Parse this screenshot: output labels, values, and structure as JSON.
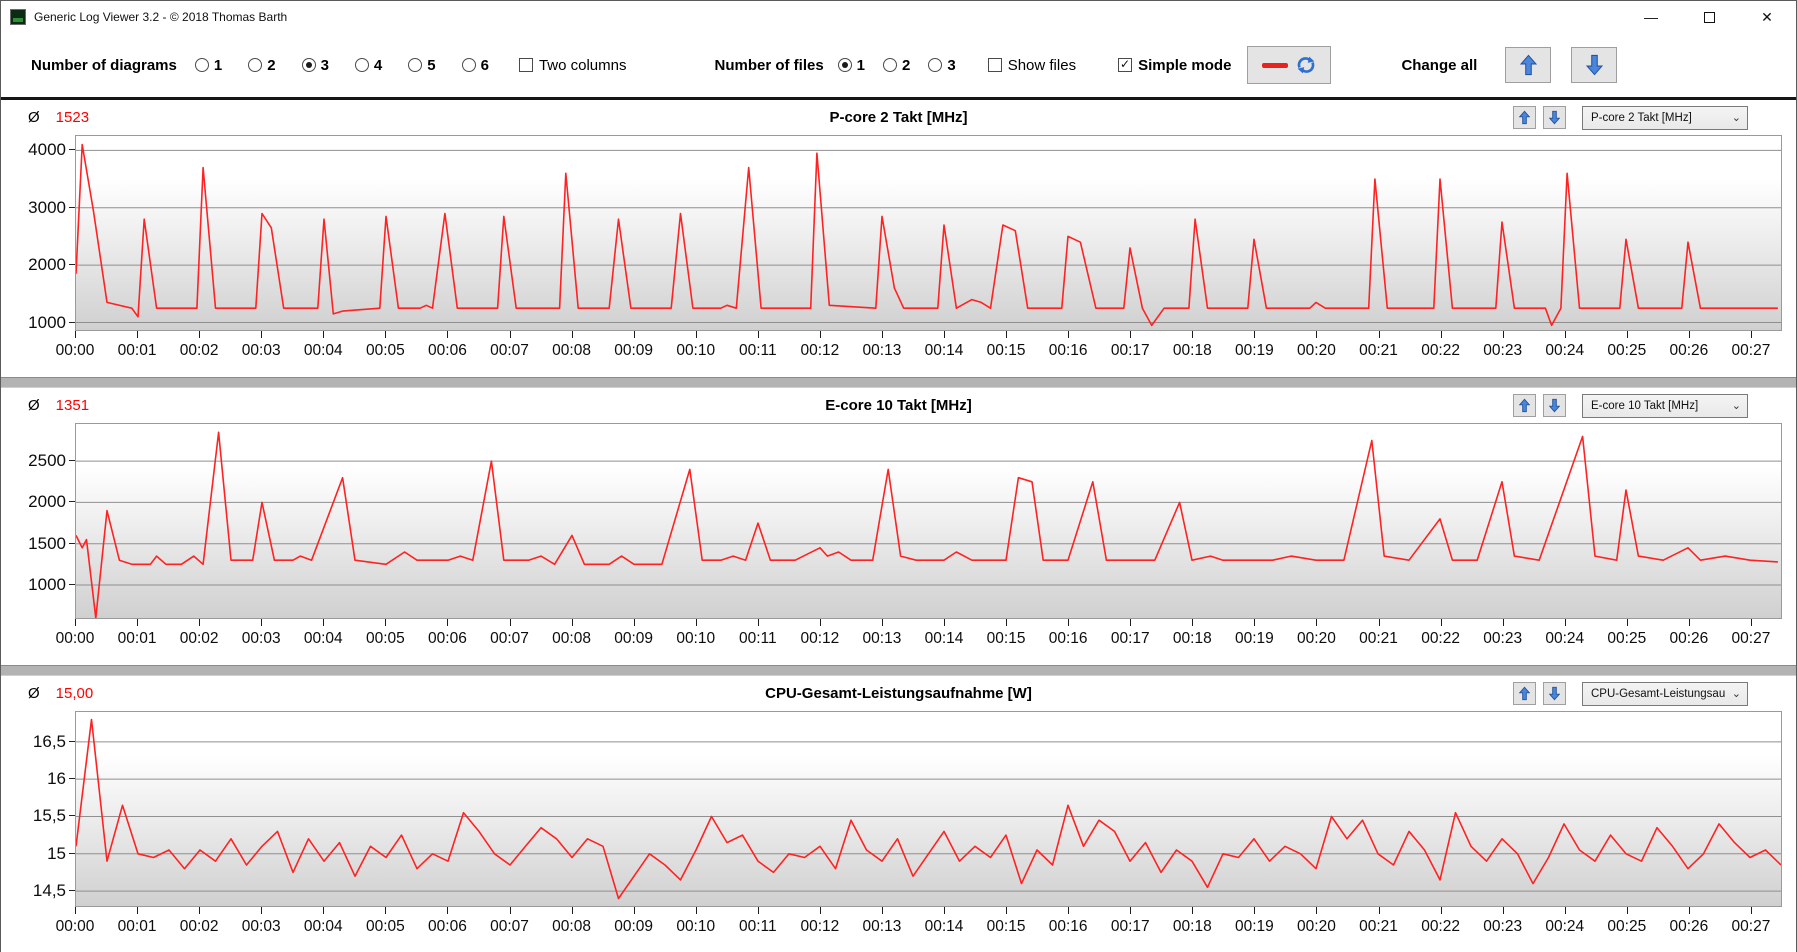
{
  "window": {
    "title": "Generic Log Viewer 3.2 - © 2018 Thomas Barth",
    "minimize_glyph": "—",
    "close_glyph": "✕"
  },
  "toolbar": {
    "diagrams_label": "Number of diagrams",
    "diagram_options": [
      "1",
      "2",
      "3",
      "4",
      "5",
      "6"
    ],
    "diagrams_selected": "3",
    "two_columns_label": "Two columns",
    "two_columns_checked": false,
    "files_label": "Number of files",
    "file_options": [
      "1",
      "2",
      "3"
    ],
    "files_selected": "1",
    "show_files_label": "Show files",
    "show_files_checked": false,
    "simple_mode_label": "Simple mode",
    "simple_mode_checked": true,
    "change_all_label": "Change all"
  },
  "time_labels": [
    "00:00",
    "00:01",
    "00:02",
    "00:03",
    "00:04",
    "00:05",
    "00:06",
    "00:07",
    "00:08",
    "00:09",
    "00:10",
    "00:11",
    "00:12",
    "00:13",
    "00:14",
    "00:15",
    "00:16",
    "00:17",
    "00:18",
    "00:19",
    "00:20",
    "00:21",
    "00:22",
    "00:23",
    "00:24",
    "00:25",
    "00:26",
    "00:27"
  ],
  "charts": [
    {
      "avg_symbol": "Ø",
      "avg": "1523",
      "title": "P-core 2 Takt [MHz]",
      "dropdown": "P-core 2 Takt [MHz]",
      "type": "line",
      "ymin": 870,
      "ymax": 4250,
      "xmax": 27.5,
      "yticks": [
        {
          "v": 1000,
          "label": "1000"
        },
        {
          "v": 2000,
          "label": "2000"
        },
        {
          "v": 3000,
          "label": "3000"
        },
        {
          "v": 4000,
          "label": "4000"
        }
      ],
      "series": {
        "color": "#ff2222",
        "points": [
          [
            0,
            1850
          ],
          [
            0.1,
            4100
          ],
          [
            0.28,
            2950
          ],
          [
            0.5,
            1350
          ],
          [
            0.9,
            1250
          ],
          [
            1.0,
            1100
          ],
          [
            1.1,
            2800
          ],
          [
            1.3,
            1250
          ],
          [
            1.95,
            1250
          ],
          [
            2.05,
            3700
          ],
          [
            2.25,
            1250
          ],
          [
            2.9,
            1250
          ],
          [
            3.0,
            2900
          ],
          [
            3.15,
            2650
          ],
          [
            3.35,
            1250
          ],
          [
            3.9,
            1250
          ],
          [
            4.0,
            2800
          ],
          [
            4.15,
            1150
          ],
          [
            4.3,
            1200
          ],
          [
            4.9,
            1250
          ],
          [
            5.0,
            2850
          ],
          [
            5.2,
            1250
          ],
          [
            5.55,
            1250
          ],
          [
            5.65,
            1300
          ],
          [
            5.75,
            1250
          ],
          [
            5.95,
            2900
          ],
          [
            6.15,
            1250
          ],
          [
            6.8,
            1250
          ],
          [
            6.9,
            2850
          ],
          [
            7.1,
            1250
          ],
          [
            7.8,
            1250
          ],
          [
            7.9,
            3600
          ],
          [
            8.1,
            1250
          ],
          [
            8.6,
            1250
          ],
          [
            8.75,
            2800
          ],
          [
            8.95,
            1250
          ],
          [
            9.6,
            1250
          ],
          [
            9.75,
            2900
          ],
          [
            9.95,
            1250
          ],
          [
            10.4,
            1250
          ],
          [
            10.5,
            1300
          ],
          [
            10.65,
            1250
          ],
          [
            10.85,
            3700
          ],
          [
            11.05,
            1250
          ],
          [
            11.85,
            1250
          ],
          [
            11.95,
            3950
          ],
          [
            12.15,
            1300
          ],
          [
            12.9,
            1250
          ],
          [
            13.0,
            2850
          ],
          [
            13.2,
            1600
          ],
          [
            13.35,
            1250
          ],
          [
            13.9,
            1250
          ],
          [
            14.0,
            2700
          ],
          [
            14.2,
            1250
          ],
          [
            14.45,
            1400
          ],
          [
            14.6,
            1350
          ],
          [
            14.75,
            1250
          ],
          [
            14.95,
            2700
          ],
          [
            15.15,
            2600
          ],
          [
            15.35,
            1250
          ],
          [
            15.9,
            1250
          ],
          [
            16.0,
            2500
          ],
          [
            16.2,
            2400
          ],
          [
            16.45,
            1250
          ],
          [
            16.9,
            1250
          ],
          [
            17.0,
            2300
          ],
          [
            17.2,
            1250
          ],
          [
            17.35,
            950
          ],
          [
            17.55,
            1250
          ],
          [
            17.95,
            1250
          ],
          [
            18.05,
            2800
          ],
          [
            18.25,
            1250
          ],
          [
            18.9,
            1250
          ],
          [
            19.0,
            2450
          ],
          [
            19.2,
            1250
          ],
          [
            19.9,
            1250
          ],
          [
            20.0,
            1350
          ],
          [
            20.15,
            1250
          ],
          [
            20.85,
            1250
          ],
          [
            20.95,
            3500
          ],
          [
            21.15,
            1250
          ],
          [
            21.9,
            1250
          ],
          [
            22.0,
            3500
          ],
          [
            22.2,
            1250
          ],
          [
            22.9,
            1250
          ],
          [
            23.0,
            2750
          ],
          [
            23.2,
            1250
          ],
          [
            23.7,
            1250
          ],
          [
            23.8,
            950
          ],
          [
            23.95,
            1250
          ],
          [
            24.05,
            3600
          ],
          [
            24.25,
            1250
          ],
          [
            24.9,
            1250
          ],
          [
            25.0,
            2450
          ],
          [
            25.2,
            1250
          ],
          [
            25.9,
            1250
          ],
          [
            26.0,
            2400
          ],
          [
            26.2,
            1250
          ],
          [
            26.6,
            1250
          ],
          [
            27.45,
            1250
          ]
        ]
      }
    },
    {
      "avg_symbol": "Ø",
      "avg": "1351",
      "title": "E-core 10 Takt [MHz]",
      "dropdown": "E-core 10 Takt [MHz]",
      "type": "line",
      "ymin": 600,
      "ymax": 2950,
      "xmax": 27.5,
      "yticks": [
        {
          "v": 1000,
          "label": "1000"
        },
        {
          "v": 1500,
          "label": "1500"
        },
        {
          "v": 2000,
          "label": "2000"
        },
        {
          "v": 2500,
          "label": "2500"
        }
      ],
      "series": {
        "color": "#ff2222",
        "points": [
          [
            0,
            1600
          ],
          [
            0.1,
            1450
          ],
          [
            0.17,
            1550
          ],
          [
            0.32,
            600
          ],
          [
            0.5,
            1900
          ],
          [
            0.7,
            1300
          ],
          [
            0.9,
            1250
          ],
          [
            1.2,
            1250
          ],
          [
            1.3,
            1350
          ],
          [
            1.45,
            1250
          ],
          [
            1.7,
            1250
          ],
          [
            1.9,
            1350
          ],
          [
            2.05,
            1250
          ],
          [
            2.3,
            2850
          ],
          [
            2.5,
            1300
          ],
          [
            2.85,
            1300
          ],
          [
            3.0,
            2000
          ],
          [
            3.2,
            1300
          ],
          [
            3.5,
            1300
          ],
          [
            3.62,
            1350
          ],
          [
            3.8,
            1300
          ],
          [
            4.3,
            2300
          ],
          [
            4.5,
            1300
          ],
          [
            5.0,
            1250
          ],
          [
            5.3,
            1400
          ],
          [
            5.5,
            1300
          ],
          [
            6.0,
            1300
          ],
          [
            6.2,
            1350
          ],
          [
            6.4,
            1300
          ],
          [
            6.7,
            2500
          ],
          [
            6.9,
            1300
          ],
          [
            7.3,
            1300
          ],
          [
            7.5,
            1350
          ],
          [
            7.72,
            1250
          ],
          [
            8.0,
            1600
          ],
          [
            8.2,
            1250
          ],
          [
            8.6,
            1250
          ],
          [
            8.8,
            1350
          ],
          [
            9.0,
            1250
          ],
          [
            9.45,
            1250
          ],
          [
            9.9,
            2400
          ],
          [
            10.1,
            1300
          ],
          [
            10.4,
            1300
          ],
          [
            10.6,
            1350
          ],
          [
            10.8,
            1300
          ],
          [
            11.0,
            1750
          ],
          [
            11.2,
            1300
          ],
          [
            11.6,
            1300
          ],
          [
            12.0,
            1450
          ],
          [
            12.12,
            1350
          ],
          [
            12.3,
            1400
          ],
          [
            12.5,
            1300
          ],
          [
            12.85,
            1300
          ],
          [
            13.1,
            2400
          ],
          [
            13.3,
            1350
          ],
          [
            13.55,
            1300
          ],
          [
            14.0,
            1300
          ],
          [
            14.2,
            1400
          ],
          [
            14.45,
            1300
          ],
          [
            15.0,
            1300
          ],
          [
            15.2,
            2300
          ],
          [
            15.42,
            2250
          ],
          [
            15.6,
            1300
          ],
          [
            16.0,
            1300
          ],
          [
            16.4,
            2250
          ],
          [
            16.62,
            1300
          ],
          [
            17.0,
            1300
          ],
          [
            17.4,
            1300
          ],
          [
            17.8,
            2000
          ],
          [
            18.0,
            1300
          ],
          [
            18.3,
            1350
          ],
          [
            18.5,
            1300
          ],
          [
            19.0,
            1300
          ],
          [
            19.3,
            1300
          ],
          [
            19.6,
            1350
          ],
          [
            20.0,
            1300
          ],
          [
            20.45,
            1300
          ],
          [
            20.9,
            2750
          ],
          [
            21.1,
            1350
          ],
          [
            21.5,
            1300
          ],
          [
            22.0,
            1800
          ],
          [
            22.2,
            1300
          ],
          [
            22.6,
            1300
          ],
          [
            23.0,
            2250
          ],
          [
            23.2,
            1350
          ],
          [
            23.6,
            1300
          ],
          [
            24.3,
            2800
          ],
          [
            24.5,
            1350
          ],
          [
            24.85,
            1300
          ],
          [
            25.0,
            2150
          ],
          [
            25.2,
            1350
          ],
          [
            25.6,
            1300
          ],
          [
            26.0,
            1450
          ],
          [
            26.2,
            1300
          ],
          [
            26.6,
            1350
          ],
          [
            27.0,
            1300
          ],
          [
            27.45,
            1280
          ]
        ]
      }
    },
    {
      "avg_symbol": "Ø",
      "avg": "15,00",
      "title": "CPU-Gesamt-Leistungsaufnahme [W]",
      "dropdown": "CPU-Gesamt-Leistungsau",
      "type": "line",
      "ymin": 14.3,
      "ymax": 16.9,
      "xmax": 27.5,
      "yticks": [
        {
          "v": 14.5,
          "label": "14,5"
        },
        {
          "v": 15,
          "label": "15"
        },
        {
          "v": 15.5,
          "label": "15,5"
        },
        {
          "v": 16,
          "label": "16"
        },
        {
          "v": 16.5,
          "label": "16,5"
        }
      ],
      "series": {
        "color": "#ff2222",
        "x0": 0,
        "dx": 0.25,
        "values": [
          15.1,
          16.8,
          14.9,
          15.65,
          15.0,
          14.95,
          15.05,
          14.8,
          15.05,
          14.9,
          15.2,
          14.85,
          15.1,
          15.3,
          14.75,
          15.2,
          14.9,
          15.15,
          14.7,
          15.1,
          14.95,
          15.25,
          14.8,
          15.0,
          14.9,
          15.55,
          15.3,
          15.0,
          14.85,
          15.1,
          15.35,
          15.2,
          14.95,
          15.2,
          15.1,
          14.4,
          14.7,
          15.0,
          14.85,
          14.65,
          15.05,
          15.5,
          15.15,
          15.25,
          14.9,
          14.75,
          15.0,
          14.95,
          15.1,
          14.8,
          15.45,
          15.05,
          14.9,
          15.2,
          14.7,
          15.0,
          15.3,
          14.9,
          15.1,
          14.95,
          15.25,
          14.6,
          15.05,
          14.85,
          15.65,
          15.1,
          15.45,
          15.3,
          14.9,
          15.15,
          14.75,
          15.05,
          14.9,
          14.55,
          15.0,
          14.95,
          15.2,
          14.9,
          15.1,
          15.0,
          14.8,
          15.5,
          15.2,
          15.45,
          15.0,
          14.85,
          15.3,
          15.05,
          14.65,
          15.55,
          15.1,
          14.9,
          15.2,
          15.0,
          14.6,
          14.95,
          15.4,
          15.05,
          14.9,
          15.25,
          15.0,
          14.9,
          15.35,
          15.1,
          14.8,
          15.0,
          15.4,
          15.15,
          14.95,
          15.05,
          14.85
        ]
      }
    }
  ]
}
